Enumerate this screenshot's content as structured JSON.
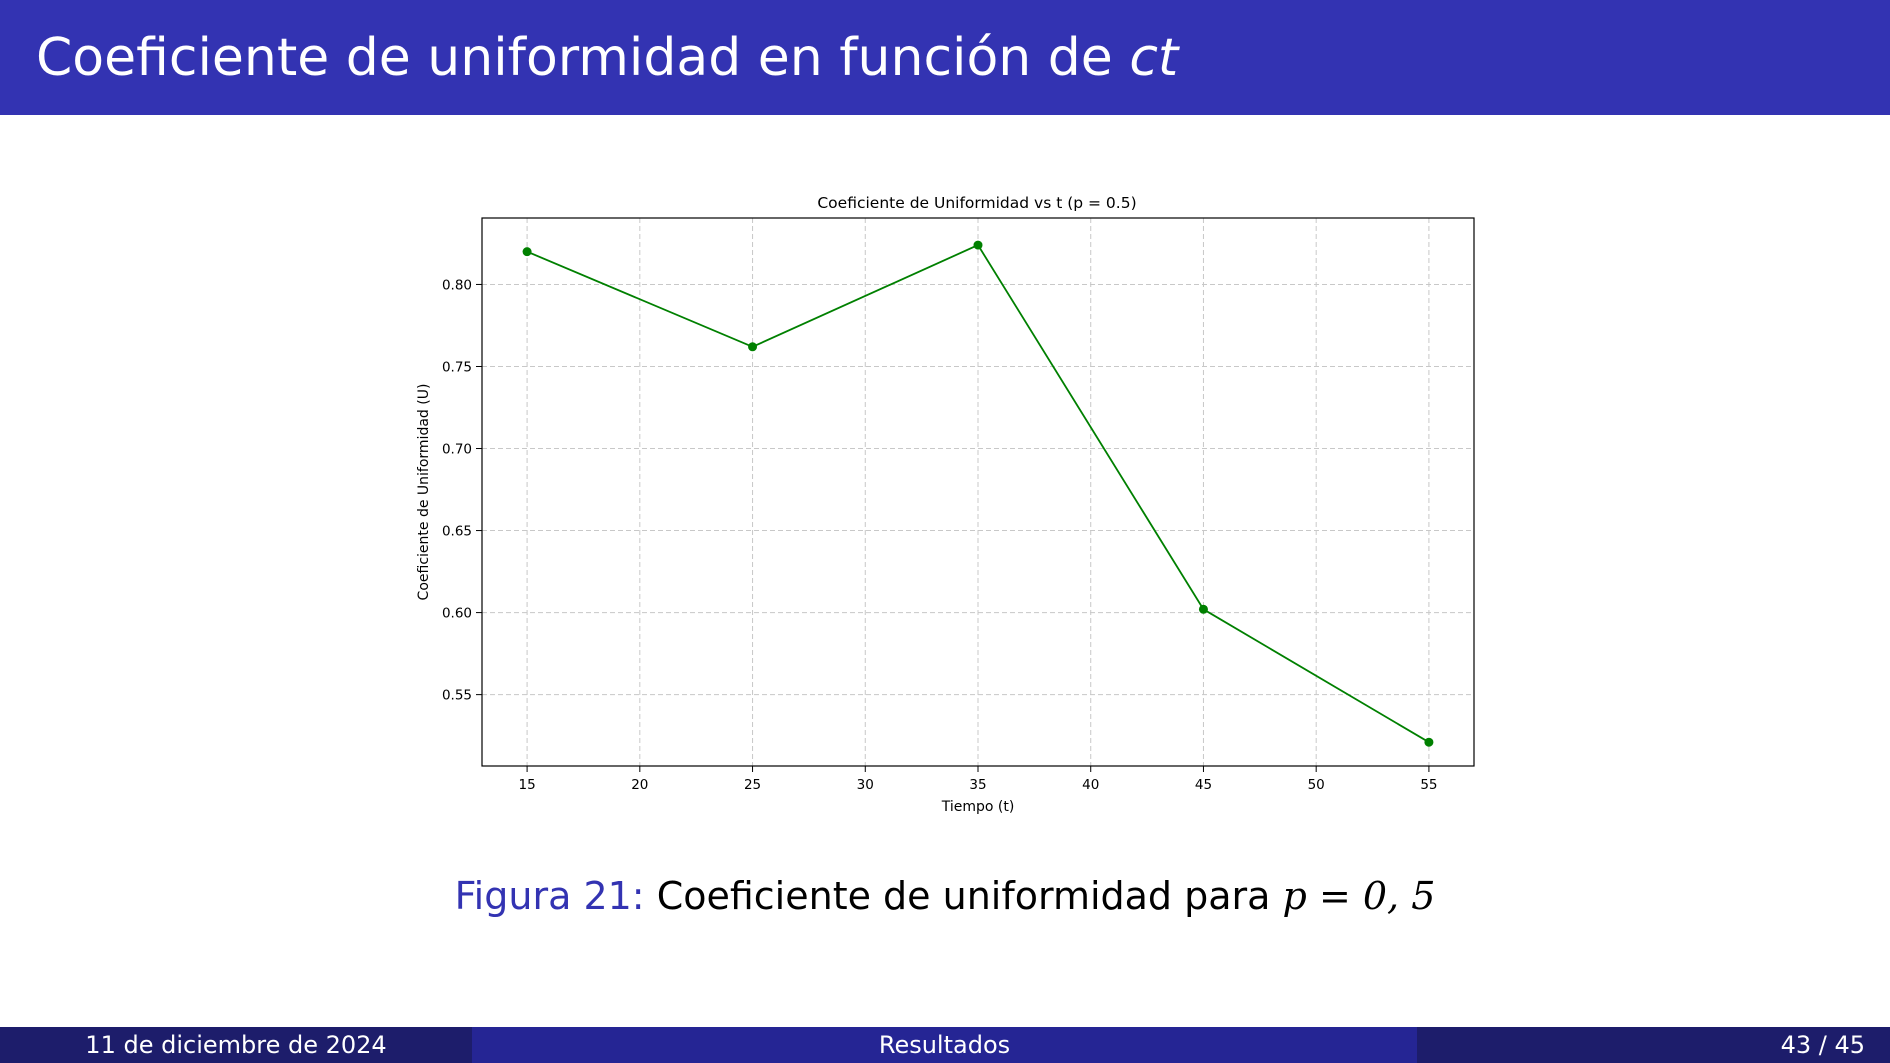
{
  "slide": {
    "title_prefix": "Coeficiente de uniformidad en función de ",
    "title_var": "ct",
    "caption_label": "Figura 21:",
    "caption_text": "Coeficiente de uniformidad para",
    "caption_var": "p",
    "caption_eq": " = ",
    "caption_value": "0, 5"
  },
  "footer": {
    "date": "11 de diciembre de 2024",
    "section": "Resultados",
    "page": "43 / 45"
  },
  "colors": {
    "header_bg": "#3333b2",
    "series": "#008000"
  },
  "chart_data": {
    "type": "line",
    "title": "Coeficiente de Uniformidad vs t (p = 0.5)",
    "xlabel": "Tiempo (t)",
    "ylabel": "Coeficiente de Uniformidad (U)",
    "x": [
      15,
      25,
      35,
      45,
      55
    ],
    "series": [
      {
        "values": [
          0.82,
          0.762,
          0.824,
          0.602,
          0.521
        ]
      }
    ],
    "xticks": [
      "15",
      "20",
      "25",
      "30",
      "35",
      "40",
      "45",
      "50",
      "55"
    ],
    "yticks": [
      "0.55",
      "0.60",
      "0.65",
      "0.70",
      "0.75",
      "0.80"
    ],
    "xlim": [
      13,
      57
    ],
    "ylim": [
      0.5065,
      0.8405
    ],
    "grid": true,
    "marker": "circle"
  }
}
